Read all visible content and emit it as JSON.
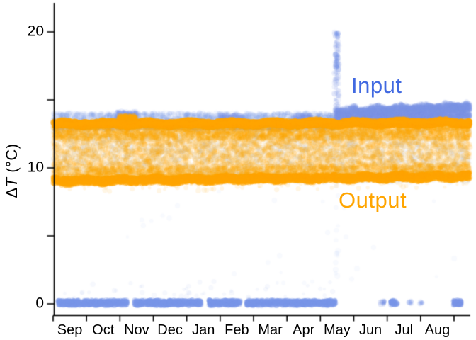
{
  "figure": {
    "background": "#ffffff",
    "axis_color": "#000000"
  },
  "chart_data": {
    "type": "scatter",
    "title": "",
    "xlabel": "",
    "ylabel": {
      "text": "ΔT (°C)",
      "delta": "Δ",
      "symbol": "T",
      "unit": " (°C)"
    },
    "x_categories": [
      "Sep",
      "Oct",
      "Nov",
      "Dec",
      "Jan",
      "Feb",
      "Mar",
      "Apr",
      "May",
      "Jun",
      "Jul",
      "Aug"
    ],
    "x_range_months": [
      0,
      12.48
    ],
    "ylim": [
      -0.85,
      23
    ],
    "yticks": [
      {
        "value": 0,
        "label": "0"
      },
      {
        "value": 5,
        "label": ""
      },
      {
        "value": 10,
        "label": "10"
      },
      {
        "value": 15,
        "label": ""
      },
      {
        "value": 20,
        "label": "20"
      }
    ],
    "legend_position": "annotations-inside-plot",
    "grid": false,
    "series": [
      {
        "name": "Input",
        "color": "#7b96e8",
        "label_color": "#4169e1",
        "description": "Input ΔT: band ~12.8–14 °C Sep–May mostly hidden behind Output, rising distinct band 13.3–14.8 °C after mid-May; near-zero line (0 °C) Sep–mid-May with gaps then isolated points; faint vertical spike to 20 °C in mid-May",
        "clusters": [
          {
            "m": [
              0.15,
              2.22
            ],
            "t": [
              -0.12,
              0.26
            ],
            "n": 700,
            "alpha": 0.28,
            "r": 3.2
          },
          {
            "m": [
              2.42,
              4.44
            ],
            "t": [
              -0.12,
              0.26
            ],
            "n": 700,
            "alpha": 0.28,
            "r": 3.2
          },
          {
            "m": [
              4.66,
              5.6
            ],
            "t": [
              -0.12,
              0.26
            ],
            "n": 320,
            "alpha": 0.28,
            "r": 3.2
          },
          {
            "m": [
              5.78,
              8.45
            ],
            "t": [
              -0.12,
              0.26
            ],
            "n": 950,
            "alpha": 0.28,
            "r": 3.2
          },
          {
            "m": [
              9.8,
              9.92
            ],
            "t": [
              -0.05,
              0.22
            ],
            "n": 14,
            "alpha": 0.2,
            "r": 3.2
          },
          {
            "m": [
              10.1,
              10.3
            ],
            "t": [
              -0.1,
              0.26
            ],
            "n": 70,
            "alpha": 0.28,
            "r": 3.2
          },
          {
            "m": [
              10.62,
              10.72
            ],
            "t": [
              0.0,
              0.22
            ],
            "n": 9,
            "alpha": 0.14,
            "r": 3.2
          },
          {
            "m": [
              10.95,
              11.06
            ],
            "t": [
              0.0,
              0.22
            ],
            "n": 9,
            "alpha": 0.14,
            "r": 3.2
          },
          {
            "m": [
              11.98,
              12.22
            ],
            "t": [
              -0.1,
              0.26
            ],
            "n": 90,
            "alpha": 0.3,
            "r": 3.2
          },
          {
            "m": [
              0.2,
              8.4
            ],
            "t": [
              0.3,
              1.7
            ],
            "n": 45,
            "alpha": 0.07,
            "r": 3.0
          },
          {
            "m": [
              0.0,
              8.45
            ],
            "t": [
              12.8,
              14.05
            ],
            "n": 2600,
            "alpha": 0.09,
            "r": 3.2
          },
          {
            "m": [
              1.9,
              2.5
            ],
            "t": [
              13.6,
              14.2
            ],
            "n": 140,
            "alpha": 0.15,
            "r": 3.0
          },
          {
            "m": [
              5.0,
              5.7
            ],
            "t": [
              13.5,
              13.95
            ],
            "n": 90,
            "alpha": 0.13,
            "r": 3.0
          },
          {
            "m": [
              7.15,
              7.75
            ],
            "t": [
              13.45,
              13.9
            ],
            "n": 80,
            "alpha": 0.13,
            "r": 3.0
          },
          {
            "m": [
              8.45,
              12.48
            ],
            "t": [
              13.25,
              14.25
            ],
            "n": 2600,
            "alpha": 0.17,
            "r": 3.2,
            "drift": [
              0,
              0.45
            ]
          },
          {
            "m": [
              8.45,
              12.48
            ],
            "t": [
              13.9,
              14.45
            ],
            "n": 750,
            "alpha": 0.2,
            "r": 3.0,
            "drift": [
              0,
              0.35
            ],
            "wiggle": [
              0.1,
              9
            ]
          },
          {
            "m": [
              0.0,
              12.48
            ],
            "t": [
              8.9,
              13.0
            ],
            "n": 2200,
            "alpha": 0.05,
            "r": 3.3
          },
          {
            "m": [
              8.42,
              8.56
            ],
            "t": [
              13.8,
              20.0
            ],
            "n": 110,
            "alpha": 0.12,
            "r": 3.4
          },
          {
            "m": [
              8.44,
              8.53
            ],
            "t": [
              19.55,
              20.05
            ],
            "n": 7,
            "alpha": 0.28,
            "r": 3.2
          },
          {
            "m": [
              8.44,
              8.54
            ],
            "t": [
              17.2,
              18.45
            ],
            "n": 24,
            "alpha": 0.22,
            "r": 3.2
          },
          {
            "m": [
              8.43,
              8.54
            ],
            "t": [
              2.0,
              13.5
            ],
            "n": 22,
            "alpha": 0.05,
            "r": 3.3
          },
          {
            "m": [
              0.3,
              12.4
            ],
            "t": [
              1.5,
              8.5
            ],
            "n": 26,
            "alpha": 0.05,
            "r": 3.0
          }
        ]
      },
      {
        "name": "Output",
        "color": "#ffa500",
        "label_color": "#ffa500",
        "description": "Output ΔT: dense band all year, sharp top edge ~13.0–13.5 °C, sharp bottom edge ~8.8–9.3 °C drifting up to ~9.5 °C by Aug, diffuse scatter filling 9–13 °C",
        "clusters": [
          {
            "m": [
              0.0,
              12.48
            ],
            "t": [
              13.0,
              13.45
            ],
            "n": 5200,
            "alpha": 0.4,
            "r": 3.2,
            "drift": [
              0,
              0.1
            ],
            "wiggle": [
              0.08,
              5
            ]
          },
          {
            "m": [
              0.0,
              12.48
            ],
            "t": [
              13.08,
              13.35
            ],
            "n": 3200,
            "alpha": 0.5,
            "r": 3.0,
            "drift": [
              0,
              0.1
            ],
            "wiggle": [
              0.07,
              7
            ]
          },
          {
            "m": [
              0.0,
              12.48
            ],
            "t": [
              8.75,
              9.3
            ],
            "n": 4200,
            "alpha": 0.38,
            "r": 3.0,
            "drift": [
              0,
              0.35
            ],
            "wiggle": [
              0.07,
              6
            ]
          },
          {
            "m": [
              0.0,
              12.48
            ],
            "t": [
              9.2,
              13.0
            ],
            "n": 7000,
            "alpha": 0.09,
            "r": 3.4,
            "drift": [
              0,
              0.2
            ]
          },
          {
            "m": [
              0.0,
              12.48
            ],
            "t": [
              12.1,
              13.05
            ],
            "n": 1800,
            "alpha": 0.16,
            "r": 3.1
          },
          {
            "m": [
              0.0,
              12.48
            ],
            "t": [
              9.1,
              10.0
            ],
            "n": 1500,
            "alpha": 0.15,
            "r": 3.1,
            "drift": [
              0,
              0.3
            ]
          },
          {
            "m": [
              0.0,
              12.48
            ],
            "t": [
              8.2,
              8.85
            ],
            "n": 80,
            "alpha": 0.1,
            "r": 3.0,
            "drift": [
              0,
              0.35
            ]
          },
          {
            "m": [
              1.95,
              2.5
            ],
            "t": [
              13.35,
              13.85
            ],
            "n": 140,
            "alpha": 0.3,
            "r": 3.0
          }
        ]
      }
    ]
  }
}
